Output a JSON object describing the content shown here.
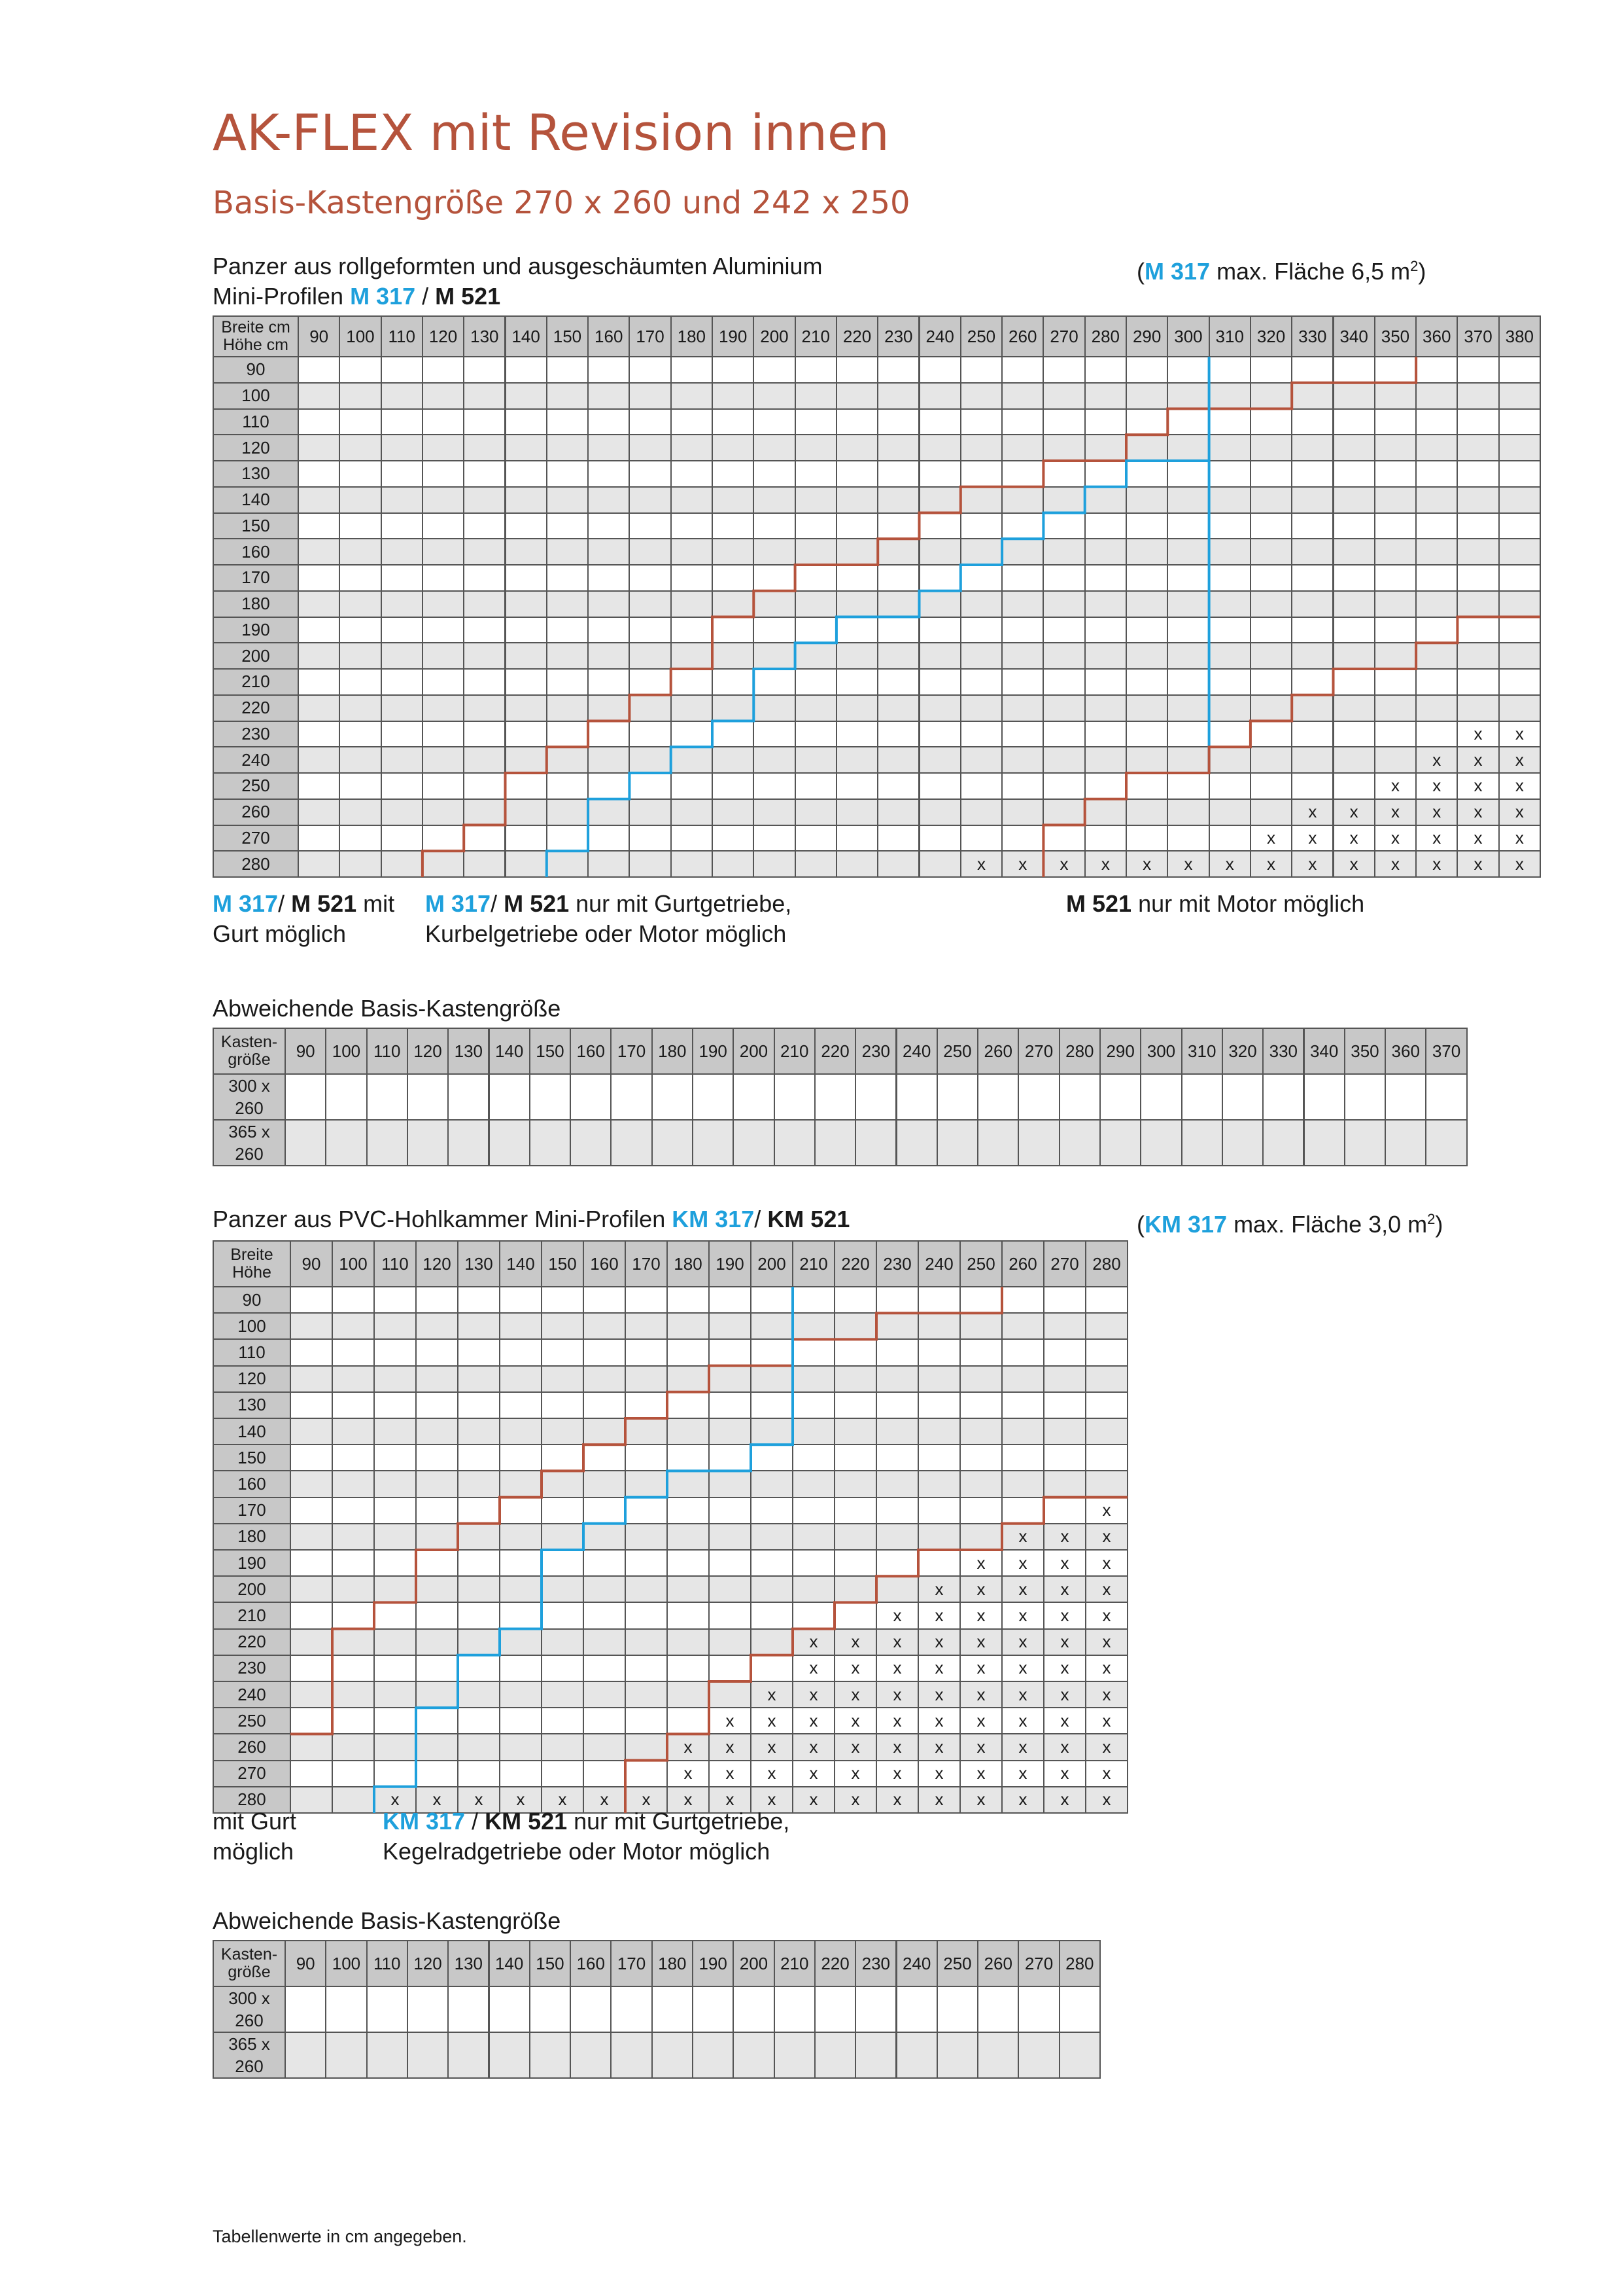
{
  "title": "AK-FLEX mit Revision innen",
  "subtitle": "Basis-Kastengröße 270 x 260 und 242 x 250",
  "colors": {
    "accent": "#b5533c",
    "blue": "#1ea0dc",
    "red_line": "#b5533c"
  },
  "section1": {
    "line1": "Panzer aus rollgeformten und ausgeschäumten Aluminium",
    "line2_prefix": "Mini-Profilen ",
    "m317": "M 317",
    "sep": " / ",
    "m521": "M 521",
    "max_open": "(",
    "max_m317": "M 317",
    "max_rest": " max. Fläche 6,5 m",
    "max_sup": "2",
    "max_close": ")",
    "table": {
      "corner1": "Breite cm",
      "corner2": "Höhe cm",
      "columns": [
        "90",
        "100",
        "110",
        "120",
        "130",
        "140",
        "150",
        "160",
        "170",
        "180",
        "190",
        "200",
        "210",
        "220",
        "230",
        "240",
        "250",
        "260",
        "270",
        "280",
        "290",
        "300",
        "310",
        "320",
        "330",
        "340",
        "350",
        "360",
        "370",
        "380"
      ],
      "rows": [
        "90",
        "100",
        "110",
        "120",
        "130",
        "140",
        "150",
        "160",
        "170",
        "180",
        "190",
        "200",
        "210",
        "220",
        "230",
        "240",
        "250",
        "260",
        "270",
        "280"
      ],
      "x_cells": [
        [
          14,
          28
        ],
        [
          14,
          29
        ],
        [
          15,
          27
        ],
        [
          15,
          28
        ],
        [
          15,
          29
        ],
        [
          16,
          26
        ],
        [
          16,
          27
        ],
        [
          16,
          28
        ],
        [
          16,
          29
        ],
        [
          17,
          24
        ],
        [
          17,
          25
        ],
        [
          17,
          26
        ],
        [
          17,
          27
        ],
        [
          17,
          28
        ],
        [
          17,
          29
        ],
        [
          18,
          23
        ],
        [
          18,
          24
        ],
        [
          18,
          25
        ],
        [
          18,
          26
        ],
        [
          18,
          27
        ],
        [
          18,
          28
        ],
        [
          18,
          29
        ],
        [
          19,
          16
        ],
        [
          19,
          17
        ],
        [
          19,
          18
        ],
        [
          19,
          19
        ],
        [
          19,
          20
        ],
        [
          19,
          21
        ],
        [
          19,
          22
        ],
        [
          19,
          23
        ],
        [
          19,
          24
        ],
        [
          19,
          25
        ],
        [
          19,
          26
        ],
        [
          19,
          27
        ],
        [
          19,
          28
        ],
        [
          19,
          29
        ]
      ],
      "x_symbol": "x"
    },
    "note1_blue": "M 317",
    "note1_sep": "/ ",
    "note1_bold": "M 521",
    "note1_rest": " mit",
    "note1_line2": "Gurt möglich",
    "note2_blue": "M 317",
    "note2_sep": "/ ",
    "note2_bold": "M 521",
    "note2_rest": " nur mit Gurtgetriebe,",
    "note2_line2": "Kurbelgetriebe oder Motor möglich",
    "note3_bold": "M 521",
    "note3_rest": " nur mit Motor möglich"
  },
  "alt1": {
    "heading": "Abweichende Basis-Kastengröße",
    "corner1": "Kasten-",
    "corner2": "größe",
    "rows": [
      [
        "300 x",
        "260"
      ],
      [
        "365 x",
        "260"
      ]
    ]
  },
  "section2": {
    "line1": "Panzer aus PVC-Hohlkammer Mini-Profilen ",
    "km317": "KM 317",
    "sep": "/ ",
    "km521": "KM 521",
    "max_open": "(",
    "max_km317": "KM 317",
    "max_rest": " max. Fläche 3,0 m",
    "max_sup": "2",
    "max_close": ")",
    "table": {
      "corner1": "Breite",
      "corner2": "Höhe",
      "columns": [
        "90",
        "100",
        "110",
        "120",
        "130",
        "140",
        "150",
        "160",
        "170",
        "180",
        "190",
        "200",
        "210",
        "220",
        "230",
        "240",
        "250",
        "260",
        "270",
        "280"
      ],
      "rows": [
        "90",
        "100",
        "110",
        "120",
        "130",
        "140",
        "150",
        "160",
        "170",
        "180",
        "190",
        "200",
        "210",
        "220",
        "230",
        "240",
        "250",
        "260",
        "270",
        "280"
      ],
      "x_symbol": "x",
      "x_start": {
        "8": 19,
        "9": 17,
        "10": 16,
        "11": 15,
        "12": 14,
        "13": 12,
        "14": 12,
        "15": 11,
        "16": 10,
        "17": 9,
        "18": 9,
        "19": 2
      }
    },
    "note1_line1": "mit Gurt",
    "note1_line2": "möglich",
    "note2_blue": "KM 317",
    "note2_sep": " / ",
    "note2_bold": "KM 521",
    "note2_rest": " nur mit Gurtgetriebe,",
    "note2_line2": "Kegelradgetriebe oder Motor möglich"
  },
  "alt2": {
    "heading": "Abweichende Basis-Kastengröße",
    "corner1": "Kasten-",
    "corner2": "größe",
    "rows": [
      [
        "300 x",
        "260"
      ],
      [
        "365 x",
        "260"
      ]
    ]
  },
  "footer": "Tabellenwerte in cm angegeben."
}
